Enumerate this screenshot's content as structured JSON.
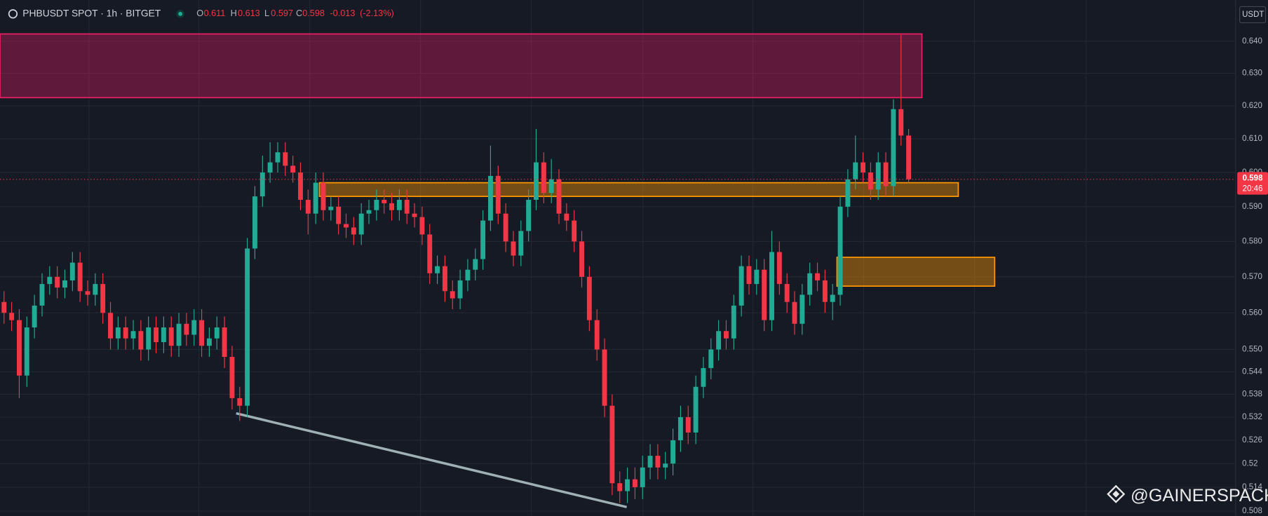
{
  "chart_data": {
    "type": "candlestick",
    "title": "PHBUSDT SPOT · 1h · BITGET",
    "legend_keys": [
      "O",
      "H",
      "L",
      "C"
    ],
    "legend_values": [
      0.611,
      0.613,
      0.597,
      0.598
    ],
    "change": -0.013,
    "change_pct": {
      "value": -2.13,
      "label": "(-2.13%)"
    },
    "currency": "USDT",
    "last_price": 0.598,
    "countdown": "20:46",
    "watermark": "@GAINERSPACK",
    "log_scale": true,
    "grid": true,
    "up_color": "#22ab94",
    "down_color": "#f23645",
    "ylim": [
      0.507,
      0.651
    ],
    "yticks": [
      {
        "value": 0.64,
        "label": "0.640"
      },
      {
        "value": 0.63,
        "label": "0.630"
      },
      {
        "value": 0.62,
        "label": "0.620"
      },
      {
        "value": 0.61,
        "label": "0.610"
      },
      {
        "value": 0.6,
        "label": "0.600"
      },
      {
        "value": 0.59,
        "label": "0.590"
      },
      {
        "value": 0.58,
        "label": "0.580"
      },
      {
        "value": 0.57,
        "label": "0.570"
      },
      {
        "value": 0.56,
        "label": "0.560"
      },
      {
        "value": 0.55,
        "label": "0.550"
      },
      0.544,
      0.538,
      0.532,
      0.526,
      0.52,
      0.514,
      0.508
    ],
    "zones": [
      {
        "from": 0.6225,
        "to": 0.6423,
        "color": "#e91e63"
      },
      {
        "from": 0.593,
        "to": 0.597,
        "color": "#ff9800"
      },
      {
        "from": 0.5674,
        "to": 0.5755,
        "color": "#ff9800"
      }
    ],
    "trendline": [
      0.533,
      0.509
    ],
    "open": [
      0.563,
      0.56,
      0.558,
      0.543,
      0.556,
      0.562,
      0.568,
      0.57,
      0.567,
      0.569,
      0.574,
      0.566,
      0.565,
      0.568,
      0.56,
      0.553,
      0.556,
      0.553,
      0.555,
      0.55,
      0.556,
      0.552,
      0.556,
      0.551,
      0.557,
      0.554,
      0.558,
      0.551,
      0.553,
      0.556,
      0.548,
      0.537,
      0.535,
      0.578,
      0.593,
      0.6,
      0.603,
      0.606,
      0.602,
      0.6,
      0.592,
      0.588,
      0.597,
      0.589,
      0.59,
      0.585,
      0.584,
      0.582,
      0.588,
      0.589,
      0.592,
      0.591,
      0.589,
      0.592,
      0.588,
      0.587,
      0.582,
      0.571,
      0.573,
      0.566,
      0.564,
      0.569,
      0.572,
      0.575,
      0.586,
      0.599,
      0.588,
      0.58,
      0.576,
      0.583,
      0.592,
      0.603,
      0.594,
      0.598,
      0.588,
      0.586,
      0.58,
      0.57,
      0.558,
      0.55,
      0.535,
      0.515,
      0.513,
      0.516,
      0.514,
      0.519,
      0.522,
      0.519,
      0.52,
      0.526,
      0.532,
      0.528,
      0.54,
      0.545,
      0.55,
      0.555,
      0.553,
      0.562,
      0.573,
      0.568,
      0.572,
      0.558,
      0.577,
      0.568,
      0.563,
      0.557,
      0.565,
      0.571,
      0.569,
      0.563,
      0.565,
      0.59,
      0.598,
      0.603,
      0.6,
      0.595,
      0.603,
      0.596,
      0.619,
      0.611
    ],
    "high": [
      0.566,
      0.563,
      0.561,
      0.559,
      0.565,
      0.571,
      0.573,
      0.573,
      0.572,
      0.577,
      0.577,
      0.569,
      0.571,
      0.571,
      0.563,
      0.559,
      0.559,
      0.558,
      0.558,
      0.559,
      0.559,
      0.559,
      0.559,
      0.56,
      0.56,
      0.561,
      0.561,
      0.556,
      0.559,
      0.559,
      0.551,
      0.54,
      0.581,
      0.596,
      0.605,
      0.609,
      0.609,
      0.609,
      0.605,
      0.603,
      0.595,
      0.6,
      0.6,
      0.593,
      0.593,
      0.588,
      0.587,
      0.591,
      0.592,
      0.595,
      0.595,
      0.594,
      0.595,
      0.595,
      0.591,
      0.59,
      0.585,
      0.576,
      0.576,
      0.569,
      0.572,
      0.575,
      0.578,
      0.589,
      0.608,
      0.602,
      0.591,
      0.583,
      0.586,
      0.595,
      0.613,
      0.606,
      0.604,
      0.601,
      0.591,
      0.589,
      0.583,
      0.573,
      0.561,
      0.553,
      0.538,
      0.518,
      0.519,
      0.519,
      0.522,
      0.525,
      0.525,
      0.523,
      0.529,
      0.535,
      0.535,
      0.543,
      0.548,
      0.553,
      0.558,
      0.558,
      0.565,
      0.576,
      0.576,
      0.575,
      0.575,
      0.583,
      0.58,
      0.571,
      0.566,
      0.568,
      0.574,
      0.574,
      0.572,
      0.568,
      0.593,
      0.601,
      0.611,
      0.606,
      0.603,
      0.606,
      0.606,
      0.622,
      0.642,
      0.613
    ],
    "low": [
      0.557,
      0.555,
      0.537,
      0.54,
      0.553,
      0.559,
      0.565,
      0.564,
      0.564,
      0.566,
      0.563,
      0.562,
      0.562,
      0.557,
      0.55,
      0.55,
      0.55,
      0.55,
      0.547,
      0.547,
      0.549,
      0.549,
      0.548,
      0.548,
      0.551,
      0.551,
      0.548,
      0.548,
      0.55,
      0.545,
      0.534,
      0.531,
      0.532,
      0.575,
      0.59,
      0.597,
      0.6,
      0.599,
      0.597,
      0.589,
      0.582,
      0.585,
      0.586,
      0.586,
      0.582,
      0.581,
      0.579,
      0.579,
      0.585,
      0.586,
      0.588,
      0.586,
      0.586,
      0.585,
      0.584,
      0.579,
      0.568,
      0.568,
      0.563,
      0.561,
      0.561,
      0.566,
      0.569,
      0.572,
      0.583,
      0.585,
      0.577,
      0.573,
      0.573,
      0.58,
      0.589,
      0.591,
      0.591,
      0.585,
      0.583,
      0.577,
      0.567,
      0.555,
      0.547,
      0.532,
      0.512,
      0.51,
      0.51,
      0.511,
      0.511,
      0.516,
      0.516,
      0.516,
      0.517,
      0.523,
      0.525,
      0.525,
      0.537,
      0.542,
      0.547,
      0.55,
      0.55,
      0.559,
      0.565,
      0.565,
      0.555,
      0.555,
      0.565,
      0.56,
      0.554,
      0.554,
      0.562,
      0.566,
      0.56,
      0.558,
      0.562,
      0.587,
      0.595,
      0.597,
      0.592,
      0.592,
      0.593,
      0.593,
      0.608,
      0.597
    ],
    "close": [
      0.56,
      0.558,
      0.543,
      0.556,
      0.562,
      0.568,
      0.57,
      0.567,
      0.569,
      0.574,
      0.566,
      0.565,
      0.568,
      0.56,
      0.553,
      0.556,
      0.553,
      0.555,
      0.55,
      0.556,
      0.552,
      0.556,
      0.551,
      0.557,
      0.554,
      0.558,
      0.551,
      0.553,
      0.556,
      0.548,
      0.537,
      0.535,
      0.578,
      0.593,
      0.6,
      0.603,
      0.606,
      0.602,
      0.6,
      0.592,
      0.588,
      0.597,
      0.589,
      0.59,
      0.585,
      0.584,
      0.582,
      0.588,
      0.589,
      0.592,
      0.591,
      0.589,
      0.592,
      0.588,
      0.587,
      0.582,
      0.571,
      0.573,
      0.566,
      0.564,
      0.569,
      0.572,
      0.575,
      0.586,
      0.599,
      0.588,
      0.58,
      0.576,
      0.583,
      0.592,
      0.603,
      0.594,
      0.598,
      0.588,
      0.586,
      0.58,
      0.57,
      0.558,
      0.55,
      0.535,
      0.515,
      0.513,
      0.516,
      0.514,
      0.519,
      0.522,
      0.519,
      0.52,
      0.526,
      0.532,
      0.528,
      0.54,
      0.545,
      0.55,
      0.555,
      0.553,
      0.562,
      0.573,
      0.568,
      0.572,
      0.558,
      0.577,
      0.568,
      0.563,
      0.557,
      0.565,
      0.571,
      0.569,
      0.563,
      0.565,
      0.59,
      0.598,
      0.603,
      0.6,
      0.595,
      0.603,
      0.596,
      0.619,
      0.611,
      0.598
    ]
  }
}
